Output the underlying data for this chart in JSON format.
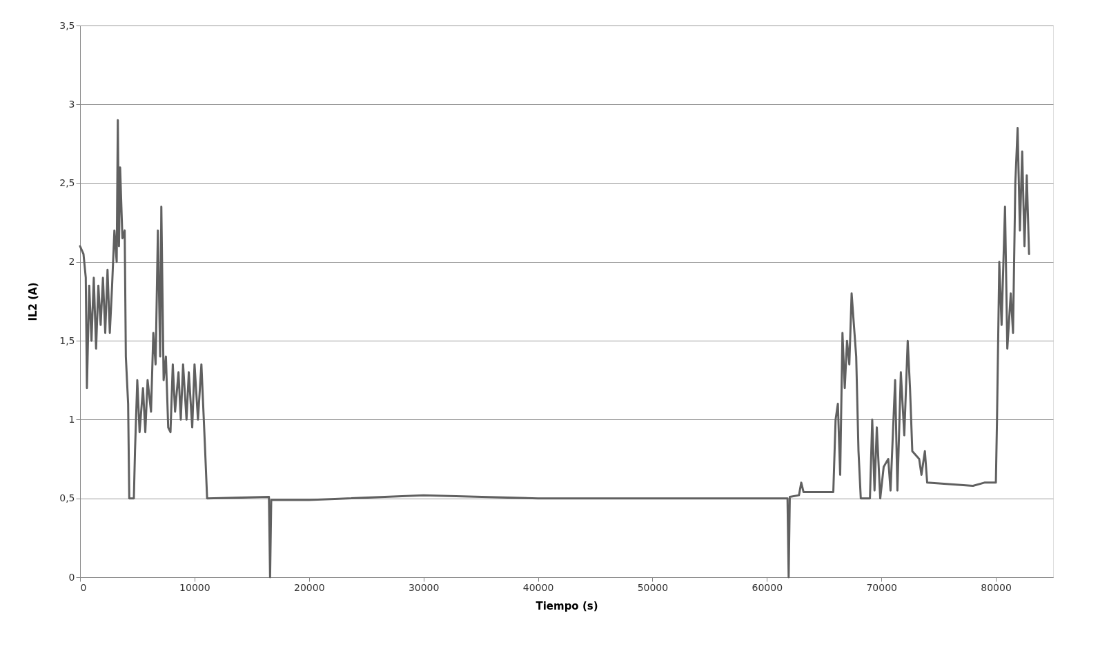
{
  "chart_data": {
    "type": "line",
    "xlabel": "Tiempo (s)",
    "ylabel": "IL2 (A)",
    "xlim": [
      0,
      85000
    ],
    "xticks": [
      0,
      10000,
      20000,
      30000,
      40000,
      50000,
      60000,
      70000,
      80000
    ],
    "ylim": [
      0,
      3.5
    ],
    "yticks": [
      0,
      {
        "value": 0.5,
        "label": "0,5"
      },
      1,
      {
        "value": 1.5,
        "label": "1,5"
      },
      2,
      {
        "value": 2.5,
        "label": "2,5"
      },
      3,
      {
        "value": 3.5,
        "label": "3,5"
      }
    ],
    "grid": "y",
    "marker": "none",
    "line_style": "solid",
    "x": [
      0,
      300,
      500,
      600,
      800,
      1000,
      1200,
      1400,
      1600,
      1800,
      2000,
      2200,
      2400,
      2600,
      2800,
      3000,
      3200,
      3300,
      3400,
      3500,
      3700,
      3900,
      4000,
      4200,
      4300,
      4700,
      4800,
      5000,
      5200,
      5500,
      5700,
      5900,
      6200,
      6400,
      6600,
      6800,
      7000,
      7100,
      7300,
      7500,
      7700,
      7900,
      8100,
      8300,
      8600,
      8800,
      9000,
      9300,
      9500,
      9800,
      10000,
      10300,
      10600,
      10900,
      11100,
      16500,
      16600,
      16700,
      20000,
      30000,
      40000,
      50000,
      61800,
      61900,
      62000,
      62800,
      63000,
      63200,
      65800,
      66000,
      66200,
      66400,
      66600,
      66800,
      67000,
      67200,
      67400,
      67600,
      67800,
      68000,
      68200,
      69000,
      69200,
      69400,
      69600,
      69900,
      70200,
      70600,
      70800,
      71200,
      71400,
      71700,
      72000,
      72300,
      72500,
      72700,
      73300,
      73500,
      73800,
      74000,
      78000,
      79000,
      80000,
      80100,
      80300,
      80500,
      80800,
      81000,
      81300,
      81500,
      81700,
      81900,
      82100,
      82300,
      82500,
      82700,
      82900
    ],
    "series": [
      {
        "color": "#606060",
        "values": [
          2.1,
          2.05,
          1.9,
          1.2,
          1.85,
          1.5,
          1.9,
          1.45,
          1.85,
          1.6,
          1.9,
          1.55,
          1.95,
          1.55,
          1.85,
          2.2,
          2.0,
          2.9,
          2.1,
          2.6,
          2.15,
          2.2,
          1.4,
          1.1,
          0.5,
          0.5,
          0.8,
          1.25,
          0.92,
          1.2,
          0.92,
          1.25,
          1.05,
          1.55,
          1.35,
          2.2,
          1.4,
          2.35,
          1.25,
          1.4,
          0.95,
          0.92,
          1.35,
          1.05,
          1.3,
          1.0,
          1.35,
          1.0,
          1.3,
          0.95,
          1.35,
          1.0,
          1.35,
          0.85,
          0.5,
          0.51,
          0,
          0.49,
          0.49,
          0.52,
          0.5,
          0.5,
          0.5,
          0,
          0.51,
          0.52,
          0.6,
          0.54,
          0.54,
          1.0,
          1.1,
          0.65,
          1.55,
          1.2,
          1.5,
          1.35,
          1.8,
          1.6,
          1.4,
          0.8,
          0.5,
          0.5,
          1.0,
          0.55,
          0.95,
          0.5,
          0.7,
          0.75,
          0.55,
          1.25,
          0.55,
          1.3,
          0.9,
          1.5,
          1.2,
          0.8,
          0.75,
          0.65,
          0.8,
          0.6,
          0.58,
          0.6,
          0.6,
          1.0,
          2.0,
          1.6,
          2.35,
          1.45,
          1.8,
          1.55,
          2.5,
          2.85,
          2.2,
          2.7,
          2.1,
          2.55,
          2.05
        ]
      }
    ]
  }
}
